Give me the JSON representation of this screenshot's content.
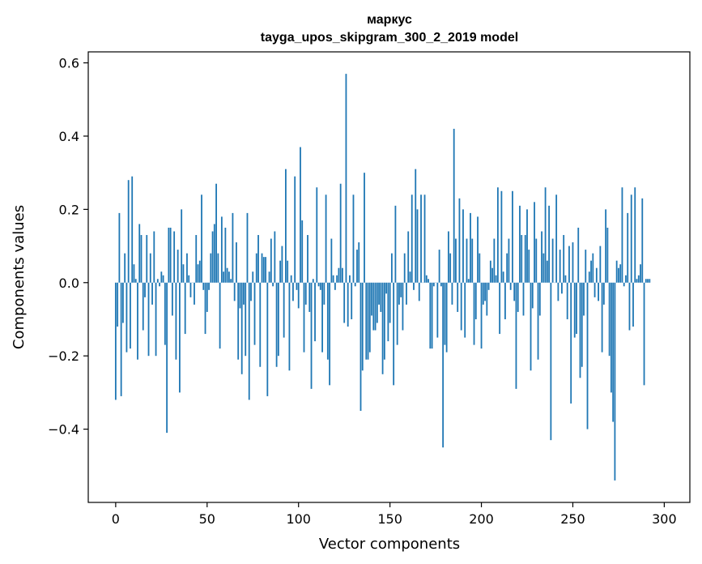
{
  "chart_data": {
    "type": "bar",
    "title": "маркус",
    "subtitle": "tayga_upos_skipgram_300_2_2019 model",
    "xlabel": "Vector components",
    "ylabel": "Components values",
    "xlim": [
      -15,
      314
    ],
    "ylim": [
      -0.6,
      0.63
    ],
    "x_ticks": [
      0,
      50,
      100,
      150,
      200,
      250,
      300
    ],
    "y_ticks": [
      -0.4,
      -0.2,
      0.0,
      0.2,
      0.4,
      0.6
    ],
    "x_tick_labels": [
      "0",
      "50",
      "100",
      "150",
      "200",
      "250",
      "300"
    ],
    "y_tick_labels": [
      "−0.4",
      "−0.2",
      "0.0",
      "0.2",
      "0.4",
      "0.6"
    ],
    "bar_color": "#1f77b4",
    "grid": false,
    "values": [
      -0.32,
      -0.12,
      0.19,
      -0.31,
      -0.11,
      0.08,
      -0.19,
      0.28,
      -0.18,
      0.29,
      0.05,
      0.01,
      -0.21,
      0.16,
      0.13,
      -0.13,
      -0.04,
      0.13,
      -0.2,
      0.08,
      -0.06,
      0.14,
      -0.2,
      0.01,
      -0.01,
      0.03,
      0.02,
      -0.17,
      -0.41,
      0.15,
      0.15,
      -0.09,
      0.14,
      -0.21,
      0.09,
      -0.3,
      0.2,
      0.05,
      -0.14,
      0.08,
      0.02,
      -0.04,
      0.0,
      -0.06,
      0.13,
      0.05,
      0.06,
      0.24,
      -0.02,
      -0.14,
      -0.08,
      -0.02,
      0.08,
      0.14,
      0.16,
      0.27,
      0.08,
      -0.18,
      0.18,
      0.03,
      0.15,
      0.04,
      0.03,
      0.01,
      0.19,
      -0.05,
      0.11,
      -0.21,
      -0.07,
      -0.25,
      -0.06,
      -0.2,
      0.19,
      -0.32,
      -0.05,
      0.03,
      -0.17,
      0.08,
      0.13,
      -0.23,
      0.08,
      0.07,
      0.07,
      -0.31,
      0.03,
      0.12,
      -0.01,
      0.14,
      -0.23,
      -0.2,
      0.06,
      0.1,
      -0.15,
      0.31,
      0.06,
      -0.24,
      0.02,
      -0.05,
      0.29,
      -0.02,
      -0.07,
      0.37,
      0.17,
      -0.19,
      -0.06,
      0.13,
      -0.08,
      -0.29,
      0.01,
      -0.16,
      0.26,
      -0.01,
      -0.02,
      -0.19,
      -0.06,
      0.24,
      -0.21,
      -0.28,
      0.12,
      0.02,
      -0.02,
      0.02,
      0.04,
      0.27,
      0.04,
      -0.11,
      0.57,
      -0.12,
      0.02,
      -0.1,
      0.24,
      -0.01,
      0.09,
      0.11,
      -0.35,
      -0.24,
      0.3,
      -0.21,
      -0.21,
      -0.19,
      -0.09,
      -0.13,
      -0.13,
      -0.11,
      -0.06,
      -0.08,
      -0.25,
      -0.21,
      -0.03,
      -0.16,
      -0.11,
      0.08,
      -0.28,
      0.21,
      -0.17,
      -0.06,
      -0.04,
      -0.13,
      0.08,
      -0.06,
      0.14,
      0.03,
      0.24,
      -0.02,
      0.31,
      0.2,
      -0.05,
      0.24,
      0.0,
      0.24,
      0.02,
      0.01,
      -0.18,
      -0.18,
      -0.01,
      0.0,
      -0.15,
      0.09,
      -0.01,
      -0.45,
      -0.17,
      -0.19,
      0.14,
      0.08,
      -0.06,
      0.42,
      0.12,
      -0.08,
      0.23,
      -0.13,
      0.2,
      -0.15,
      0.12,
      0.01,
      0.19,
      0.12,
      -0.17,
      -0.1,
      0.18,
      0.08,
      -0.18,
      -0.06,
      -0.05,
      -0.09,
      -0.02,
      0.06,
      0.04,
      0.12,
      0.02,
      0.26,
      -0.14,
      0.25,
      0.03,
      -0.1,
      0.08,
      0.12,
      -0.02,
      0.25,
      -0.05,
      -0.29,
      -0.08,
      0.21,
      0.13,
      -0.09,
      0.13,
      0.2,
      0.09,
      -0.24,
      -0.07,
      0.22,
      0.12,
      -0.21,
      -0.09,
      0.14,
      0.08,
      0.26,
      0.06,
      0.21,
      -0.43,
      0.12,
      0.0,
      0.24,
      -0.05,
      0.09,
      -0.03,
      0.13,
      0.02,
      -0.1,
      0.1,
      -0.33,
      0.11,
      -0.15,
      -0.14,
      0.15,
      -0.26,
      -0.23,
      -0.09,
      0.09,
      -0.4,
      0.03,
      0.06,
      0.08,
      -0.04,
      0.04,
      -0.05,
      0.1,
      -0.19,
      -0.06,
      0.2,
      0.15,
      -0.2,
      -0.3,
      -0.38,
      -0.54,
      0.06,
      0.04,
      0.05,
      0.26,
      -0.01,
      0.02,
      0.19,
      -0.13,
      0.24,
      -0.12,
      0.26,
      0.01,
      0.02,
      0.05,
      0.23,
      -0.28,
      0.01,
      0.01,
      0.01
    ]
  }
}
